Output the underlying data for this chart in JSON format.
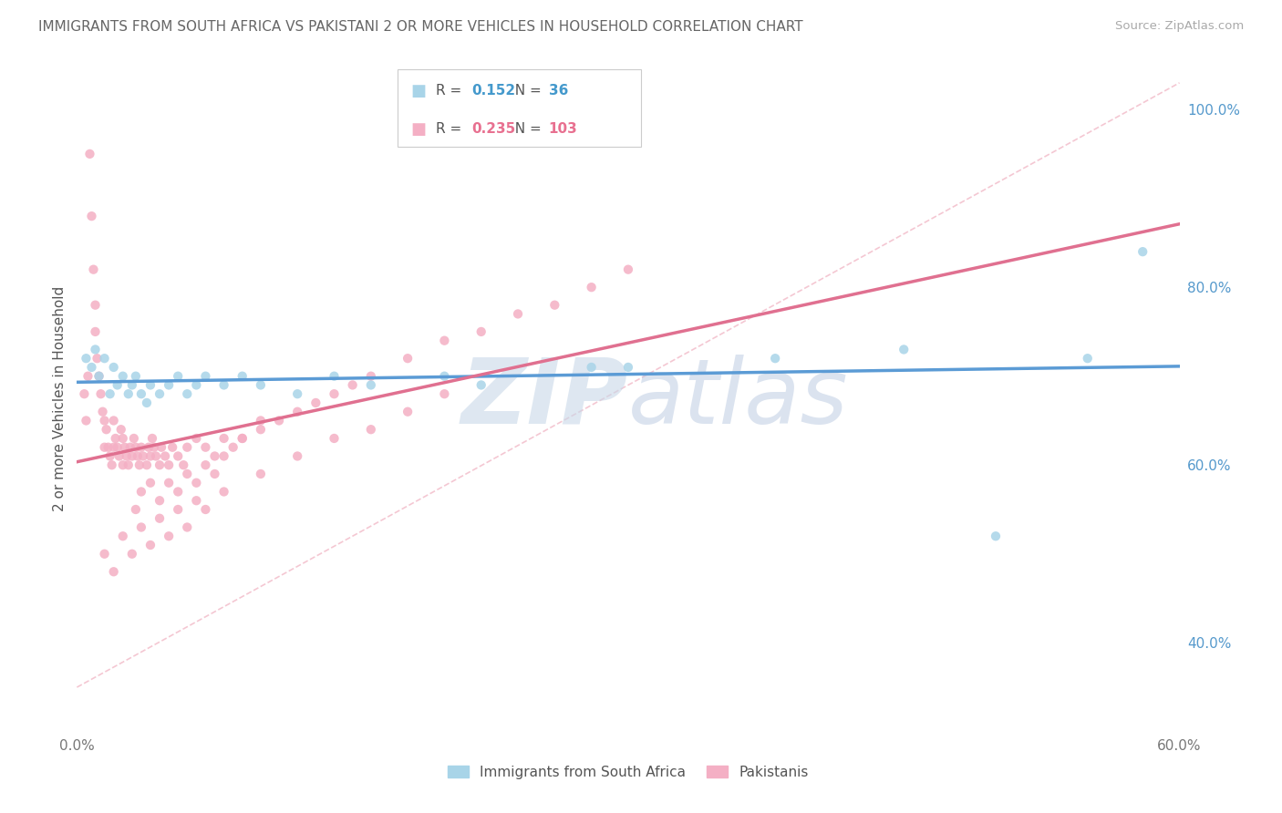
{
  "title": "IMMIGRANTS FROM SOUTH AFRICA VS PAKISTANI 2 OR MORE VEHICLES IN HOUSEHOLD CORRELATION CHART",
  "source": "Source: ZipAtlas.com",
  "ylabel": "2 or more Vehicles in Household",
  "xlim": [
    0.0,
    0.6
  ],
  "ylim": [
    0.3,
    1.05
  ],
  "xticks": [
    0.0,
    0.1,
    0.2,
    0.3,
    0.4,
    0.5,
    0.6
  ],
  "xticklabels": [
    "0.0%",
    "",
    "",
    "",
    "",
    "",
    "60.0%"
  ],
  "yticks_right": [
    0.4,
    0.6,
    0.8,
    1.0
  ],
  "yticklabels_right": [
    "40.0%",
    "60.0%",
    "80.0%",
    "100.0%"
  ],
  "legend_blue_label": "Immigrants from South Africa",
  "legend_pink_label": "Pakistanis",
  "blue_R": "0.152",
  "blue_N": "36",
  "pink_R": "0.235",
  "pink_N": "103",
  "blue_color": "#a8d4e8",
  "pink_color": "#f4afc4",
  "blue_line_color": "#5b9bd5",
  "pink_line_color": "#e07090",
  "ref_line_color": "#f0b0c0",
  "blue_scatter_x": [
    0.005,
    0.008,
    0.01,
    0.012,
    0.015,
    0.018,
    0.02,
    0.022,
    0.025,
    0.028,
    0.03,
    0.032,
    0.035,
    0.038,
    0.04,
    0.045,
    0.05,
    0.055,
    0.06,
    0.065,
    0.07,
    0.08,
    0.09,
    0.1,
    0.12,
    0.14,
    0.16,
    0.2,
    0.22,
    0.28,
    0.3,
    0.38,
    0.45,
    0.5,
    0.55,
    0.58
  ],
  "blue_scatter_y": [
    0.72,
    0.71,
    0.73,
    0.7,
    0.72,
    0.68,
    0.71,
    0.69,
    0.7,
    0.68,
    0.69,
    0.7,
    0.68,
    0.67,
    0.69,
    0.68,
    0.69,
    0.7,
    0.68,
    0.69,
    0.7,
    0.69,
    0.7,
    0.69,
    0.68,
    0.7,
    0.69,
    0.7,
    0.69,
    0.71,
    0.71,
    0.72,
    0.73,
    0.52,
    0.72,
    0.84
  ],
  "pink_scatter_x": [
    0.004,
    0.005,
    0.006,
    0.007,
    0.008,
    0.009,
    0.01,
    0.01,
    0.011,
    0.012,
    0.013,
    0.014,
    0.015,
    0.015,
    0.016,
    0.017,
    0.018,
    0.019,
    0.02,
    0.02,
    0.021,
    0.022,
    0.023,
    0.024,
    0.025,
    0.025,
    0.026,
    0.027,
    0.028,
    0.029,
    0.03,
    0.031,
    0.032,
    0.033,
    0.034,
    0.035,
    0.036,
    0.038,
    0.039,
    0.04,
    0.041,
    0.042,
    0.043,
    0.045,
    0.046,
    0.048,
    0.05,
    0.052,
    0.055,
    0.058,
    0.06,
    0.065,
    0.07,
    0.075,
    0.08,
    0.085,
    0.09,
    0.1,
    0.11,
    0.12,
    0.13,
    0.14,
    0.15,
    0.16,
    0.18,
    0.2,
    0.22,
    0.24,
    0.26,
    0.28,
    0.3,
    0.032,
    0.035,
    0.04,
    0.045,
    0.05,
    0.055,
    0.06,
    0.065,
    0.07,
    0.075,
    0.08,
    0.09,
    0.1,
    0.015,
    0.02,
    0.025,
    0.03,
    0.035,
    0.04,
    0.045,
    0.05,
    0.055,
    0.06,
    0.065,
    0.07,
    0.08,
    0.1,
    0.12,
    0.14,
    0.16,
    0.18,
    0.2
  ],
  "pink_scatter_y": [
    0.68,
    0.65,
    0.7,
    0.95,
    0.88,
    0.82,
    0.78,
    0.75,
    0.72,
    0.7,
    0.68,
    0.66,
    0.65,
    0.62,
    0.64,
    0.62,
    0.61,
    0.6,
    0.62,
    0.65,
    0.63,
    0.62,
    0.61,
    0.64,
    0.6,
    0.63,
    0.62,
    0.61,
    0.6,
    0.62,
    0.61,
    0.63,
    0.62,
    0.61,
    0.6,
    0.62,
    0.61,
    0.6,
    0.62,
    0.61,
    0.63,
    0.62,
    0.61,
    0.6,
    0.62,
    0.61,
    0.6,
    0.62,
    0.61,
    0.6,
    0.62,
    0.63,
    0.62,
    0.61,
    0.63,
    0.62,
    0.63,
    0.64,
    0.65,
    0.66,
    0.67,
    0.68,
    0.69,
    0.7,
    0.72,
    0.74,
    0.75,
    0.77,
    0.78,
    0.8,
    0.82,
    0.55,
    0.57,
    0.58,
    0.56,
    0.58,
    0.57,
    0.59,
    0.58,
    0.6,
    0.59,
    0.61,
    0.63,
    0.65,
    0.5,
    0.48,
    0.52,
    0.5,
    0.53,
    0.51,
    0.54,
    0.52,
    0.55,
    0.53,
    0.56,
    0.55,
    0.57,
    0.59,
    0.61,
    0.63,
    0.64,
    0.66,
    0.68
  ],
  "ref_line_x": [
    0.0,
    0.6
  ],
  "ref_line_y": [
    0.35,
    1.03
  ]
}
